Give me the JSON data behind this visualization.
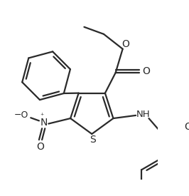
{
  "background": "#ffffff",
  "line_color": "#2a2a2a",
  "line_width": 1.6,
  "figsize": [
    2.66,
    2.75
  ],
  "dpi": 100,
  "xlim": [
    0,
    266
  ],
  "ylim": [
    0,
    275
  ]
}
